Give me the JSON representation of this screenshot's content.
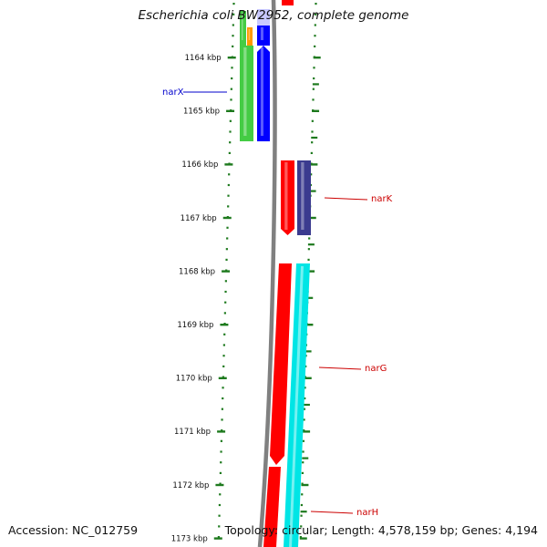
{
  "title": "Escherichia coli BW2952, complete genome",
  "footer": {
    "accession": "Accession: NC_012759",
    "summary": "Topology: circular; Length: 4,578,159 bp; Genes: 4,194"
  },
  "ruler": {
    "tick_labels": [
      "1164 kbp",
      "1165 kbp",
      "1166 kbp",
      "1167 kbp",
      "1168 kbp",
      "1169 kbp",
      "1170 kbp",
      "1171 kbp",
      "1172 kbp",
      "1173 kbp"
    ],
    "tick_color": "#1e7a1e"
  },
  "genes": [
    {
      "name": "narX",
      "strand": "forward",
      "color": "#0000cc"
    },
    {
      "name": "narK",
      "strand": "reverse",
      "color": "#cc0000"
    },
    {
      "name": "narG",
      "strand": "reverse",
      "color": "#cc0000"
    },
    {
      "name": "narH",
      "strand": "reverse",
      "color": "#cc0000"
    }
  ],
  "colors": {
    "backbone": "#808080",
    "forward_feature": "#0000ff",
    "reverse_feature": "#ff0000",
    "green_feature": "#44cc44",
    "orange_feature": "#ff9900",
    "navy_feature": "#3b3b8f",
    "cyan_feature": "#00e5e5"
  }
}
